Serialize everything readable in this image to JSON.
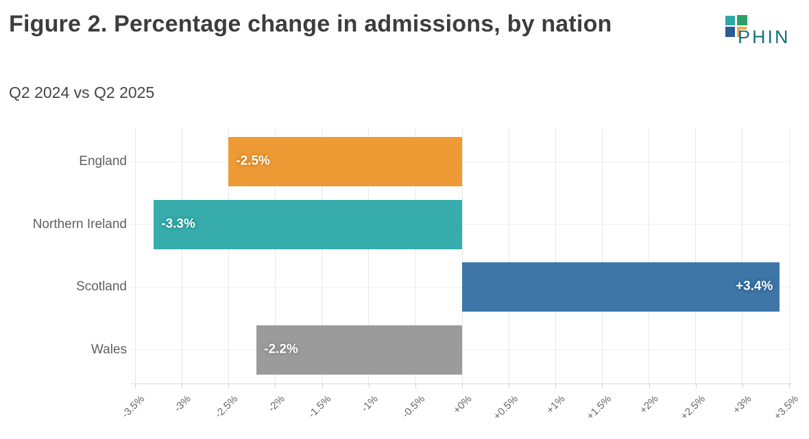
{
  "header": {
    "title": "Figure 2. Percentage change in admissions, by nation",
    "subtitle": "Q2 2024 vs Q2 2025"
  },
  "logo": {
    "text": "PHIN",
    "colors": {
      "square_teal": "#2fa7a4",
      "square_green": "#2e9e68",
      "square_blue": "#2b5b94",
      "bracket_orange": "#f5a63b",
      "wordmark": "#17707a"
    }
  },
  "chart_data": {
    "type": "bar",
    "orientation": "horizontal",
    "title": "Figure 2. Percentage change in admissions, by nation",
    "subtitle": "Q2 2024 vs Q2 2025",
    "categories": [
      "England",
      "Northern Ireland",
      "Scotland",
      "Wales"
    ],
    "values": [
      -2.5,
      -3.3,
      3.4,
      -2.2
    ],
    "value_labels": [
      "-2.5%",
      "-3.3%",
      "+3.4%",
      "-2.2%"
    ],
    "bar_colors": [
      "#ee9a35",
      "#37acad",
      "#3e76a8",
      "#9b9b9b"
    ],
    "value_label_halo_colors": [
      "#cf8223",
      "#23908f",
      "#2a5d8c",
      "#818181"
    ],
    "xlabel": "",
    "ylabel": "",
    "xlim": [
      -3.5,
      3.5
    ],
    "x_tick_step": 0.5,
    "x_tick_labels": [
      "-3.5%",
      "-3%",
      "-2.5%",
      "-2%",
      "-1.5%",
      "-1%",
      "-0.5%",
      "+0%",
      "+0.5%",
      "+1%",
      "+1.5%",
      "+2%",
      "+2.5%",
      "+3%",
      "+3.5%"
    ],
    "grid": true,
    "legend": false,
    "value_label_text_color": "#ffffff"
  },
  "colors": {
    "background": "#ffffff",
    "title_text": "#3d3d3d",
    "subtitle_text": "#454545",
    "category_label": "#5f5f5f",
    "axis_tick_label": "#666666",
    "gridline": "#e7e7e7",
    "axis_line": "#dcdcdc"
  }
}
